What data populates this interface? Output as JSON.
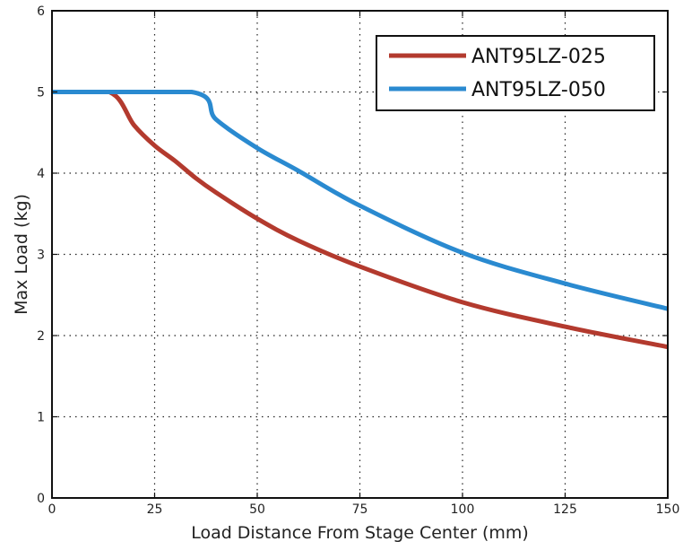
{
  "chart_data": {
    "type": "line",
    "xlabel": "Load Distance From Stage Center (mm)",
    "ylabel": "Max Load (kg)",
    "xlim": [
      0,
      150
    ],
    "ylim": [
      0,
      6
    ],
    "xticks": [
      0,
      25,
      50,
      75,
      100,
      125,
      150
    ],
    "yticks": [
      0,
      1,
      2,
      3,
      4,
      5,
      6
    ],
    "grid": true,
    "legend_position": "top-right",
    "series": [
      {
        "name": "ANT95LZ-025",
        "color": "#b33a2e",
        "x": [
          0,
          14,
          20,
          25,
          30,
          35,
          40,
          50,
          60,
          75,
          100,
          125,
          150
        ],
        "y": [
          5.0,
          5.0,
          4.59,
          4.34,
          4.15,
          3.94,
          3.76,
          3.44,
          3.17,
          2.85,
          2.41,
          2.11,
          1.86
        ]
      },
      {
        "name": "ANT95LZ-050",
        "color": "#2a8ad0",
        "x": [
          0,
          34,
          40,
          50,
          60,
          75,
          100,
          125,
          150
        ],
        "y": [
          5.0,
          5.0,
          4.66,
          4.31,
          4.03,
          3.6,
          3.02,
          2.64,
          2.33
        ]
      }
    ]
  }
}
